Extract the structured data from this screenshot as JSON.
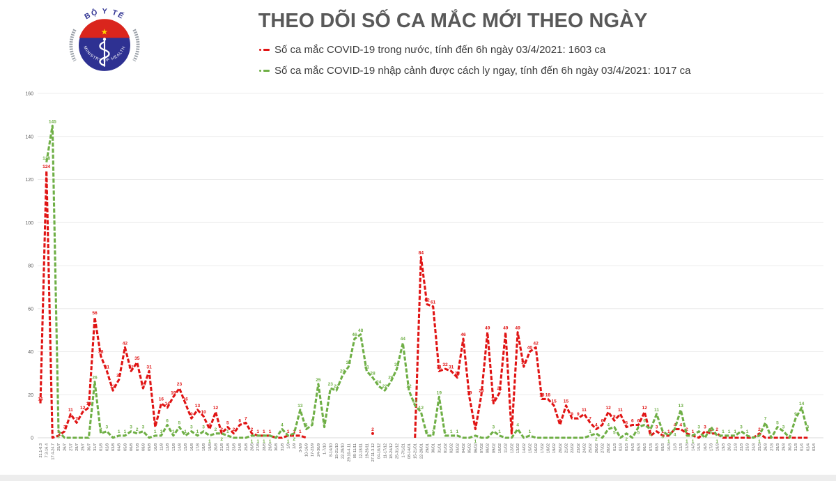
{
  "header": {
    "title": "THEO DÕI SỐ CA MẮC MỚI THEO NGÀY",
    "logo": {
      "top_text": "BỘ Y TẾ",
      "bottom_text": "MINISTRY OF HEALTH",
      "colors": {
        "ring": "#9aa0a8",
        "blue": "#2e3192",
        "red": "#da251d",
        "star": "#ffd500"
      }
    }
  },
  "legend": [
    {
      "label": "Số ca mắc COVID-19 trong nước, tính đến 6h ngày 03/4/2021: 1603 ca",
      "color": "#e01414"
    },
    {
      "label": "Số ca mắc COVID-19 nhập cảnh được cách ly ngay, tính đến 6h ngày 03/4/2021: 1017 ca",
      "color": "#6faf46"
    }
  ],
  "chart_data": {
    "type": "line",
    "title": "THEO DÕI SỐ CA MẮC MỚI THEO NGÀY",
    "xlabel": "",
    "ylabel": "",
    "ylim": [
      0,
      160
    ],
    "yticks": [
      0,
      20,
      40,
      60,
      80,
      100,
      120,
      140,
      160
    ],
    "grid": true,
    "legend_position": "top",
    "line_style": "dashed",
    "categories": [
      "21.1-6.3",
      "7.3-16.4",
      "17.4-24.7",
      "25/7",
      "26/7",
      "27/7",
      "28/7",
      "29/7",
      "30/7",
      "31/7",
      "01/8",
      "02/8",
      "03/8",
      "04/8",
      "05/8",
      "06/8",
      "07/8",
      "08/8",
      "09/8",
      "10/8",
      "11/8",
      "12/8",
      "13/8",
      "14/8",
      "15/8",
      "16/8",
      "17/8",
      "18/8",
      "19/8",
      "20/8",
      "21/8",
      "22/8",
      "23/8",
      "24/8",
      "25/8",
      "26/8",
      "27/8",
      "28/8",
      "29/8",
      "30/8",
      "31/8",
      "1/9",
      "2/9",
      "3-9/9",
      "10-16/9",
      "17-23/9",
      "24-30/9",
      "1-7/10",
      "8-14/10",
      "15-21/10",
      "22-28/10",
      "29.10-4.11",
      "05-11/11",
      "12-18/11",
      "19-26/11",
      "27.11-3.12",
      "04-10/12",
      "11-17/12",
      "18-24/12",
      "25-31/12",
      "1-7/1/21",
      "08-14/01",
      "15-21/01",
      "22-28/01",
      "29/01",
      "30/01",
      "31/01",
      "01/02",
      "02/02",
      "03/02",
      "04/02",
      "05/02",
      "06/02",
      "07/02",
      "08/02",
      "09/02",
      "10/02",
      "11/02",
      "12/02",
      "13/02",
      "14/02",
      "15/02",
      "16/02",
      "17/02",
      "18/02",
      "19/02",
      "20/02",
      "21/02",
      "22/02",
      "23/02",
      "24/02",
      "25/02",
      "26/02",
      "27/02",
      "28/02",
      "01/3",
      "02/3",
      "03/3",
      "04/3",
      "05/3",
      "06/3",
      "07/3",
      "08/3",
      "09/3",
      "10/3",
      "11/3",
      "12/3",
      "13/3",
      "14/3",
      "15/3",
      "16/3",
      "17/3",
      "18/3",
      "19/3",
      "20/3",
      "21/3",
      "22/3",
      "23/3",
      "24/3",
      "25/3",
      "26/3",
      "27/3",
      "28/3",
      "29/3",
      "30/3",
      "31/3",
      "01/4",
      "02/4",
      "03/4"
    ],
    "series": [
      {
        "name": "Số ca mắc COVID-19 trong nước",
        "color": "#e01414",
        "values": [
          16,
          124,
          0,
          1,
          3,
          11,
          7,
          12,
          14,
          56,
          38,
          31,
          22,
          27,
          42,
          31,
          35,
          23,
          31,
          5,
          16,
          14,
          19,
          23,
          16,
          9,
          13,
          10,
          4,
          12,
          2,
          5,
          2,
          6,
          7,
          2,
          1,
          1,
          1,
          0,
          0,
          1,
          1,
          1,
          0,
          null,
          null,
          null,
          null,
          null,
          null,
          null,
          null,
          null,
          null,
          2,
          null,
          null,
          null,
          null,
          null,
          null,
          0,
          84,
          62,
          61,
          31,
          32,
          31,
          28,
          46,
          19,
          4,
          20,
          49,
          16,
          21,
          49,
          2,
          49,
          33,
          40,
          42,
          18,
          18,
          15,
          6,
          15,
          9,
          9,
          11,
          7,
          4,
          6,
          12,
          8,
          11,
          5,
          6,
          6,
          12,
          1,
          3,
          1,
          1,
          4,
          4,
          2,
          1,
          0,
          3,
          2,
          2,
          0,
          0,
          0,
          0,
          0,
          0,
          2,
          0,
          0,
          0,
          0,
          0,
          0,
          0,
          0,
          null
        ]
      },
      {
        "name": "Số ca mắc COVID-19 nhập cảnh được cách ly ngay",
        "color": "#6faf46",
        "values": [
          null,
          128,
          145,
          3,
          0,
          0,
          0,
          0,
          0,
          26,
          2,
          3,
          0,
          1,
          1,
          3,
          2,
          3,
          0,
          1,
          1,
          6,
          1,
          5,
          1,
          3,
          1,
          3,
          1,
          2,
          2,
          1,
          0,
          0,
          0,
          1,
          1,
          1,
          1,
          0,
          4,
          1,
          2,
          13,
          4,
          6,
          25,
          5,
          23,
          22,
          29,
          33,
          46,
          48,
          31,
          28,
          24,
          22,
          26,
          32,
          44,
          22,
          15,
          12,
          1,
          1,
          19,
          1,
          1,
          1,
          0,
          0,
          1,
          0,
          0,
          3,
          1,
          0,
          0,
          4,
          0,
          1,
          0,
          0,
          0,
          0,
          0,
          0,
          0,
          0,
          0,
          1,
          2,
          0,
          4,
          5,
          0,
          2,
          0,
          5,
          6,
          4,
          11,
          3,
          1,
          4,
          13,
          1,
          1,
          3,
          0,
          5,
          1,
          1,
          1,
          1,
          3,
          1,
          0,
          1,
          7,
          0,
          5,
          3,
          0,
          9,
          14,
          3,
          null
        ]
      }
    ]
  }
}
